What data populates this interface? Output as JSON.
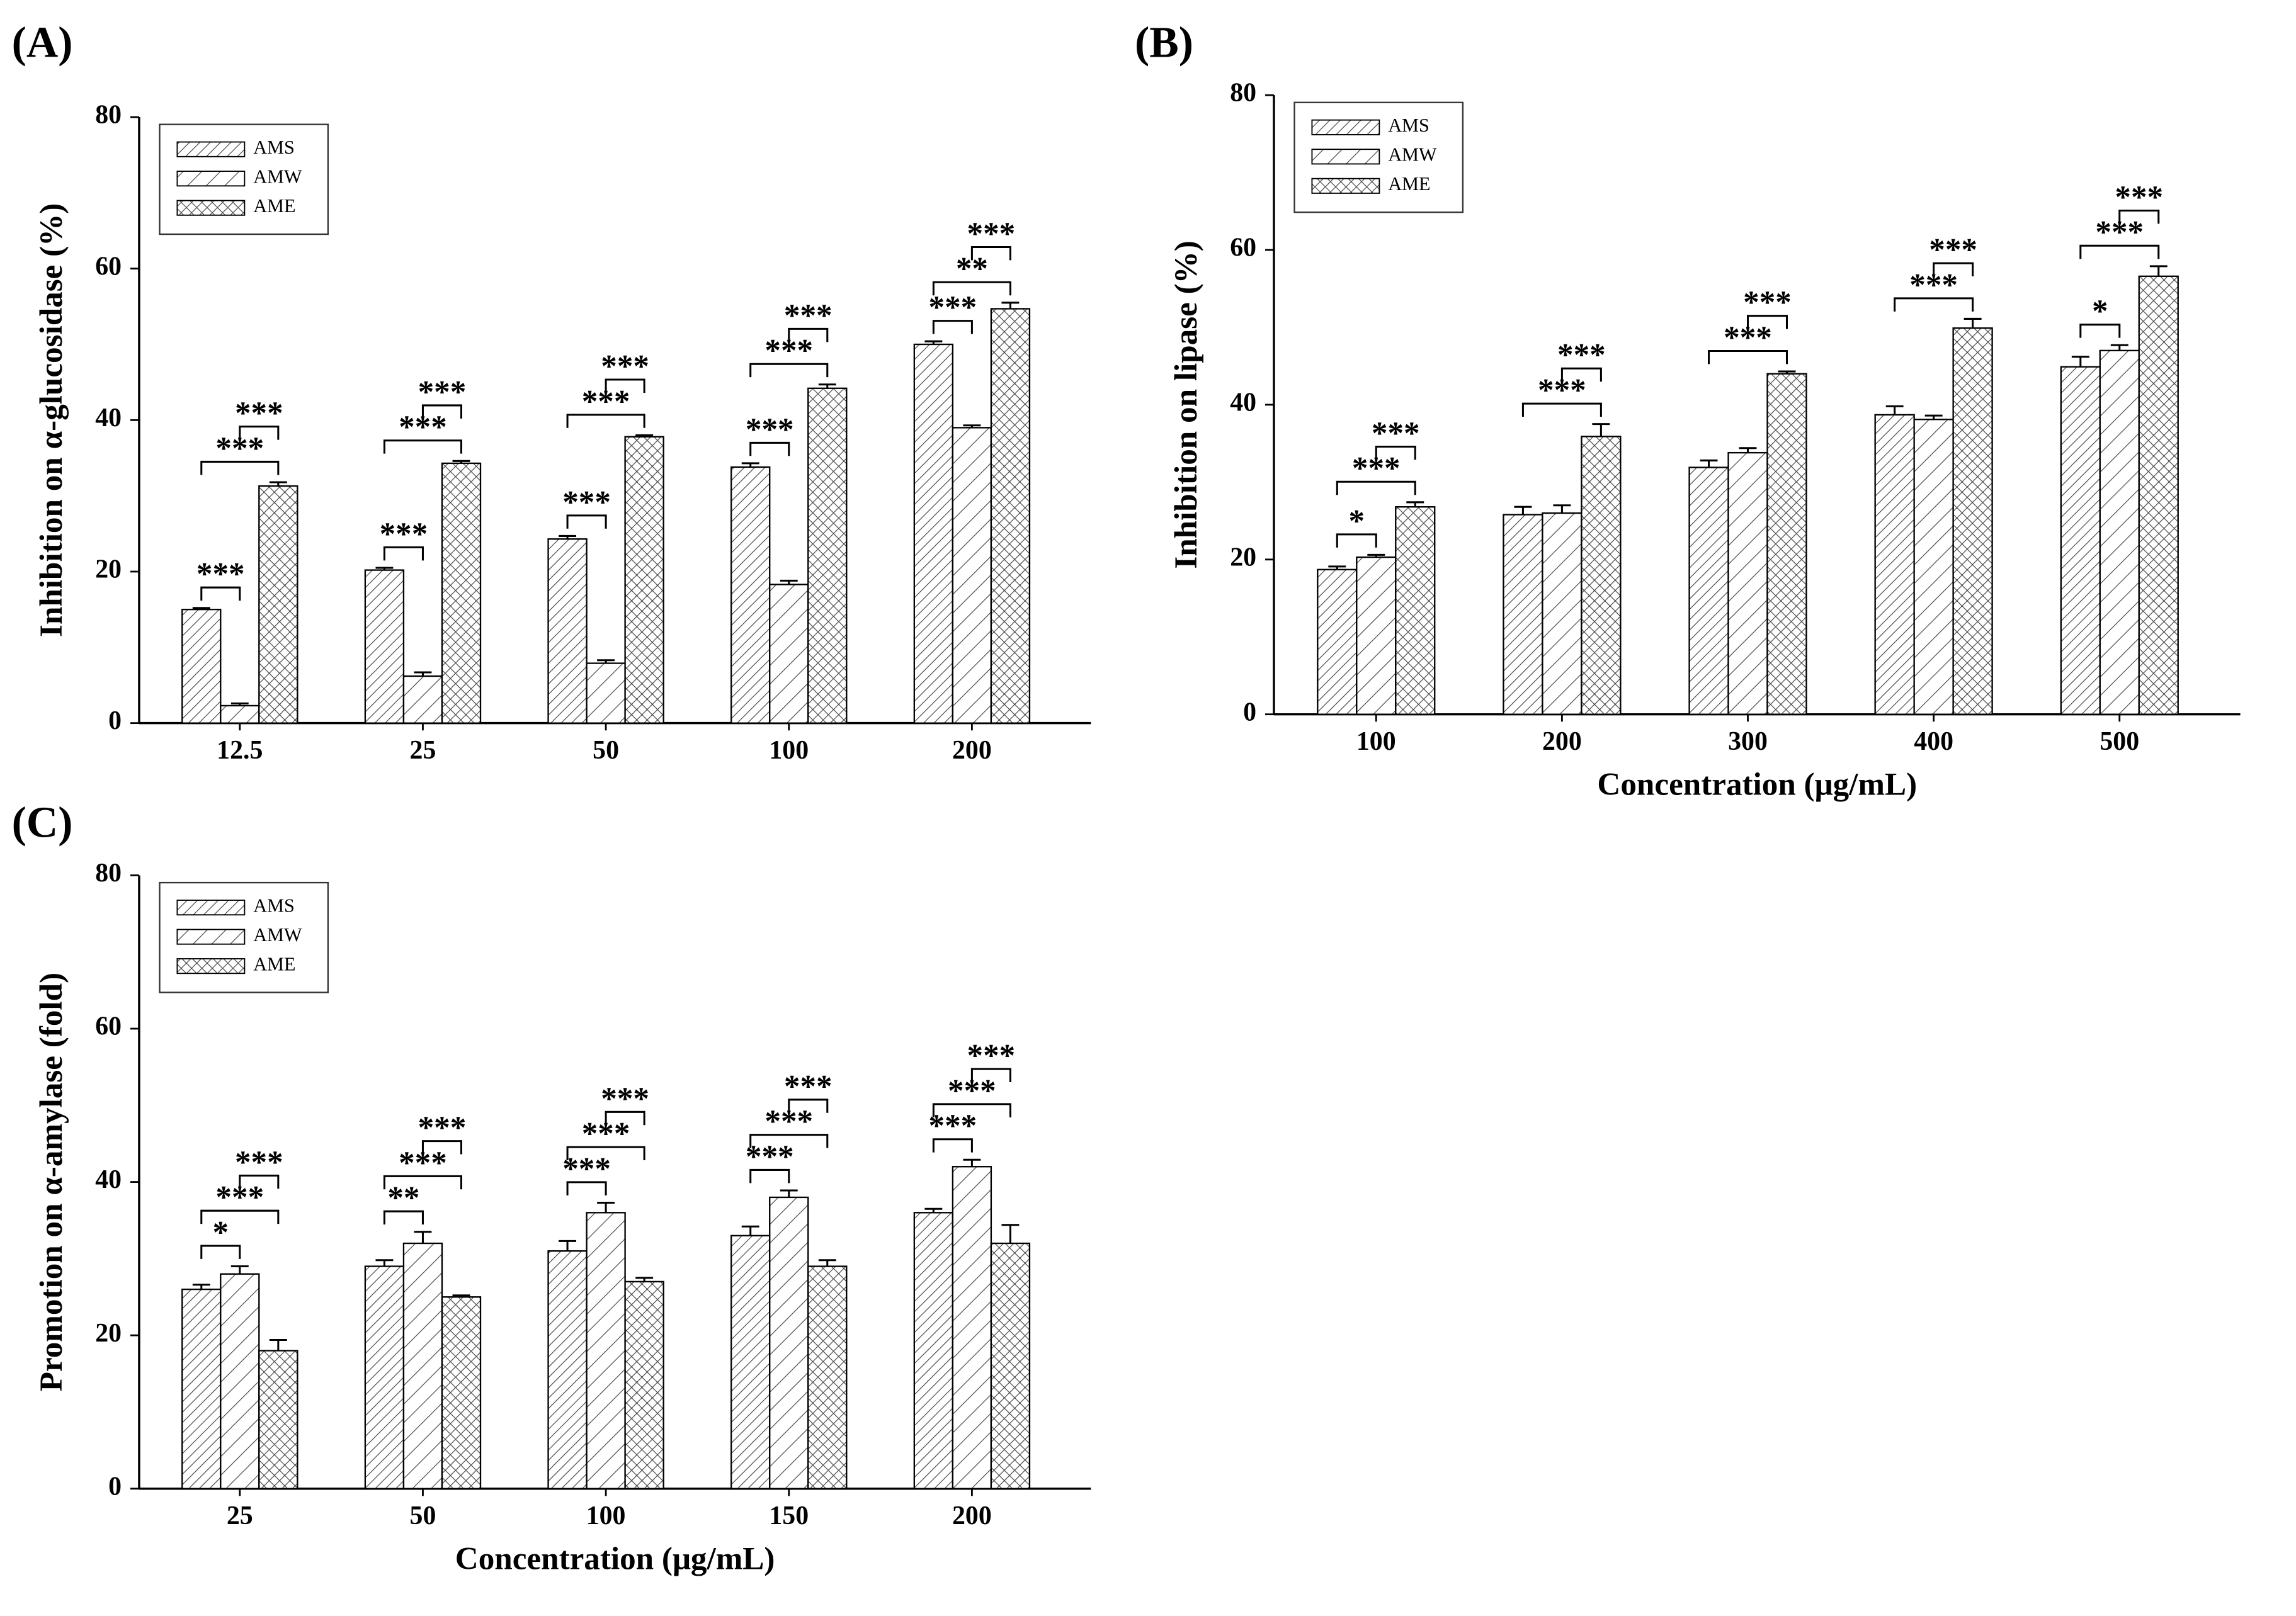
{
  "chart_data": [
    {
      "type": "bar",
      "panel": "(A)",
      "ylabel": "Inhibition on α-glucosidase (%)",
      "categories": [
        "12.5",
        "25",
        "50",
        "100",
        "200"
      ],
      "series": [
        {
          "name": "AMS",
          "pattern": "hatch",
          "color": "#000000",
          "values": [
            15,
            20.2,
            24.3,
            33.8,
            50
          ],
          "errors": [
            0.2,
            0.3,
            0.4,
            0.5,
            0.4
          ]
        },
        {
          "name": "AMW",
          "pattern": "hatch-wide",
          "color": "#000000",
          "values": [
            2.3,
            6.2,
            7.9,
            18.3,
            39
          ],
          "errors": [
            0.3,
            0.5,
            0.4,
            0.5,
            0.3
          ]
        },
        {
          "name": "AME",
          "pattern": "crosshatch",
          "color": "#000000",
          "values": [
            31.3,
            34.3,
            37.8,
            44.2,
            54.7
          ],
          "errors": [
            0.5,
            0.3,
            0.2,
            0.5,
            0.8
          ]
        }
      ],
      "ylim": [
        0,
        80
      ],
      "yticks": [
        0,
        20,
        40,
        60,
        80
      ],
      "legend": "upper left",
      "comparisons": [
        [
          {
            "between": [
              "AMS",
              "AMW"
            ],
            "label": "***"
          },
          {
            "between": [
              "AMS",
              "AME"
            ],
            "label": "***"
          },
          {
            "between": [
              "AMW",
              "AME"
            ],
            "label": "***"
          }
        ],
        [
          {
            "between": [
              "AMS",
              "AMW"
            ],
            "label": "***"
          },
          {
            "between": [
              "AMS",
              "AME"
            ],
            "label": "***"
          },
          {
            "between": [
              "AMW",
              "AME"
            ],
            "label": "***"
          }
        ],
        [
          {
            "between": [
              "AMS",
              "AMW"
            ],
            "label": "***"
          },
          {
            "between": [
              "AMS",
              "AME"
            ],
            "label": "***"
          },
          {
            "between": [
              "AMW",
              "AME"
            ],
            "label": "***"
          }
        ],
        [
          {
            "between": [
              "AMS",
              "AMW"
            ],
            "label": "***"
          },
          {
            "between": [
              "AMS",
              "AME"
            ],
            "label": "***"
          },
          {
            "between": [
              "AMW",
              "AME"
            ],
            "label": "***"
          }
        ],
        [
          {
            "between": [
              "AMS",
              "AMW"
            ],
            "label": "***"
          },
          {
            "between": [
              "AMS",
              "AME"
            ],
            "label": "**"
          },
          {
            "between": [
              "AMW",
              "AME"
            ],
            "label": "***"
          }
        ]
      ]
    },
    {
      "type": "bar",
      "panel": "(B)",
      "ylabel": "Inhibition on lipase (%)",
      "xlabel": "Concentration (μg/mL)",
      "categories": [
        "100",
        "200",
        "300",
        "400",
        "500"
      ],
      "series": [
        {
          "name": "AMS",
          "pattern": "hatch",
          "color": "#000000",
          "values": [
            18.7,
            25.8,
            31.9,
            38.7,
            44.9
          ],
          "errors": [
            0.4,
            1,
            0.9,
            1.1,
            1.3
          ]
        },
        {
          "name": "AMW",
          "pattern": "hatch-wide",
          "color": "#000000",
          "values": [
            20.3,
            26,
            33.8,
            38.1,
            47
          ],
          "errors": [
            0.3,
            1,
            0.6,
            0.5,
            0.7
          ]
        },
        {
          "name": "AME",
          "pattern": "crosshatch",
          "color": "#000000",
          "values": [
            26.8,
            35.9,
            44,
            49.9,
            56.6
          ],
          "errors": [
            0.6,
            1.6,
            0.3,
            1.2,
            1.3
          ]
        }
      ],
      "ylim": [
        0,
        80
      ],
      "yticks": [
        0,
        20,
        40,
        60,
        80
      ],
      "legend": "upper left",
      "comparisons": [
        [
          {
            "between": [
              "AMS",
              "AMW"
            ],
            "label": "*"
          },
          {
            "between": [
              "AMS",
              "AME"
            ],
            "label": "***"
          },
          {
            "between": [
              "AMW",
              "AME"
            ],
            "label": "***"
          }
        ],
        [
          {
            "between": [
              "AMS",
              "AME"
            ],
            "label": "***"
          },
          {
            "between": [
              "AMW",
              "AME"
            ],
            "label": "***"
          }
        ],
        [
          {
            "between": [
              "AMS",
              "AME"
            ],
            "label": "***"
          },
          {
            "between": [
              "AMW",
              "AME"
            ],
            "label": "***"
          }
        ],
        [
          {
            "between": [
              "AMS",
              "AME"
            ],
            "label": "***"
          },
          {
            "between": [
              "AMW",
              "AME"
            ],
            "label": "***"
          }
        ],
        [
          {
            "between": [
              "AMS",
              "AMW"
            ],
            "label": "*"
          },
          {
            "between": [
              "AMS",
              "AME"
            ],
            "label": "***"
          },
          {
            "between": [
              "AMW",
              "AME"
            ],
            "label": "***"
          }
        ]
      ]
    },
    {
      "type": "bar",
      "panel": "(C)",
      "ylabel": "Promotion on α-amylase (fold)",
      "xlabel": "Concentration (μg/mL)",
      "categories": [
        "25",
        "50",
        "100",
        "150",
        "200"
      ],
      "series": [
        {
          "name": "AMS",
          "pattern": "hatch",
          "color": "#000000",
          "values": [
            26,
            29,
            31,
            33,
            36
          ],
          "errors": [
            0.6,
            0.8,
            1.3,
            1.2,
            0.5
          ]
        },
        {
          "name": "AMW",
          "pattern": "hatch-wide",
          "color": "#000000",
          "values": [
            28,
            32,
            36,
            38,
            42
          ],
          "errors": [
            1,
            1.5,
            1.3,
            0.9,
            0.9
          ]
        },
        {
          "name": "AME",
          "pattern": "crosshatch",
          "color": "#000000",
          "values": [
            18,
            25,
            27,
            29,
            32
          ],
          "errors": [
            1.4,
            0.2,
            0.5,
            0.8,
            2.4
          ]
        }
      ],
      "ylim": [
        0,
        80
      ],
      "yticks": [
        0,
        20,
        40,
        60,
        80
      ],
      "legend": "upper left",
      "comparisons": [
        [
          {
            "between": [
              "AMS",
              "AMW"
            ],
            "label": "*"
          },
          {
            "between": [
              "AMS",
              "AME"
            ],
            "label": "***"
          },
          {
            "between": [
              "AMW",
              "AME"
            ],
            "label": "***"
          }
        ],
        [
          {
            "between": [
              "AMS",
              "AMW"
            ],
            "label": "**"
          },
          {
            "between": [
              "AMS",
              "AME"
            ],
            "label": "***"
          },
          {
            "between": [
              "AMW",
              "AME"
            ],
            "label": "***"
          }
        ],
        [
          {
            "between": [
              "AMS",
              "AMW"
            ],
            "label": "***"
          },
          {
            "between": [
              "AMS",
              "AME"
            ],
            "label": "***"
          },
          {
            "between": [
              "AMW",
              "AME"
            ],
            "label": "***"
          }
        ],
        [
          {
            "between": [
              "AMS",
              "AMW"
            ],
            "label": "***"
          },
          {
            "between": [
              "AMS",
              "AME"
            ],
            "label": "***"
          },
          {
            "between": [
              "AMW",
              "AME"
            ],
            "label": "***"
          }
        ],
        [
          {
            "between": [
              "AMS",
              "AMW"
            ],
            "label": "***"
          },
          {
            "between": [
              "AMS",
              "AME"
            ],
            "label": "***"
          },
          {
            "between": [
              "AMW",
              "AME"
            ],
            "label": "***"
          }
        ]
      ]
    }
  ]
}
